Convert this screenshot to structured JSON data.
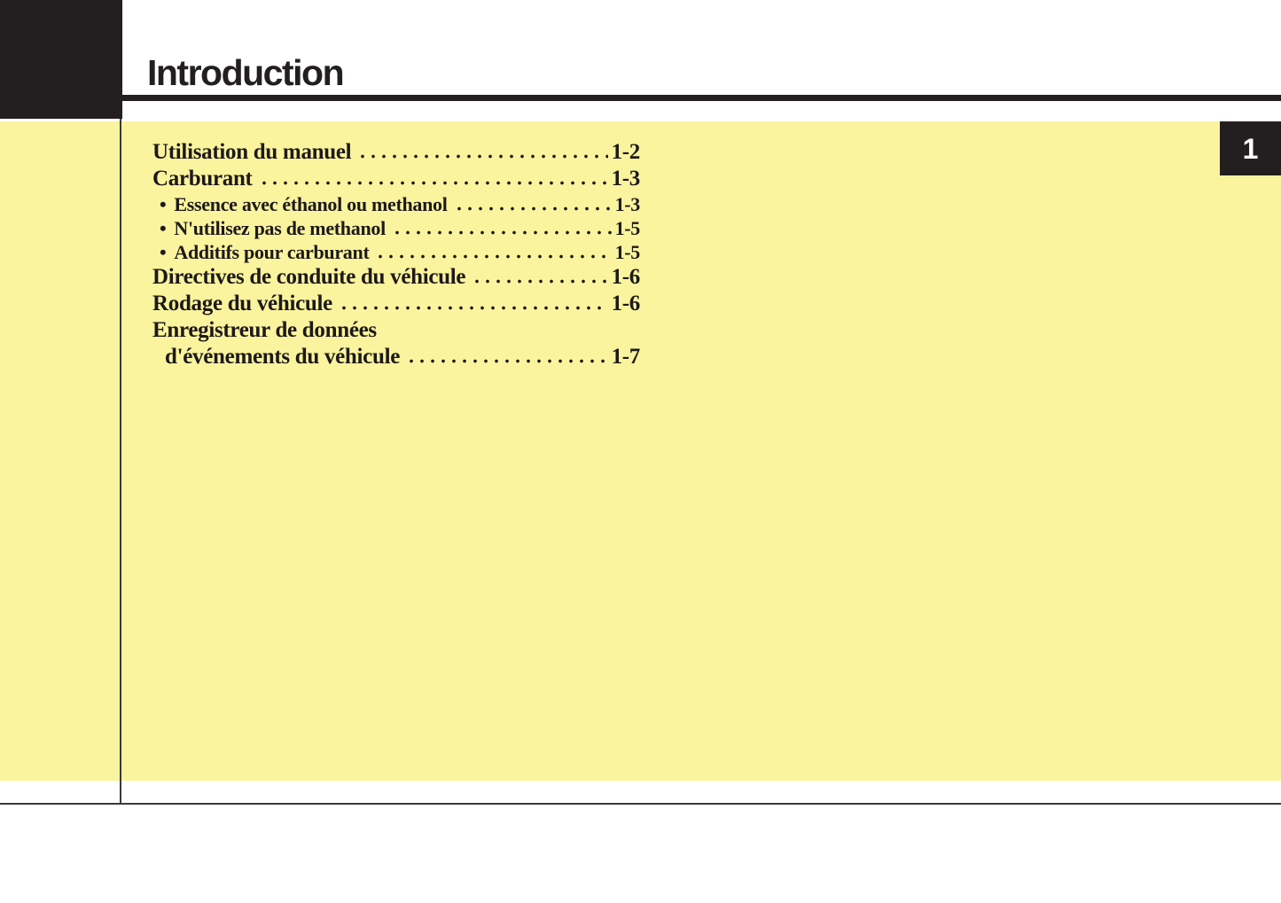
{
  "page": {
    "title": "Introduction"
  },
  "tab": {
    "number": "1"
  },
  "toc": {
    "bullet": "•",
    "entries": [
      {
        "label": "Utilisation du manuel",
        "page": "1-2",
        "level": 1
      },
      {
        "label": "Carburant",
        "page": "1-3",
        "level": 1
      },
      {
        "label": "Essence avec éthanol ou methanol",
        "page": "1-3",
        "level": 2
      },
      {
        "label": "N'utilisez pas de methanol",
        "page": "1-5",
        "level": 2
      },
      {
        "label": "Additifs pour carburant",
        "page": "1-5",
        "level": 2
      },
      {
        "label": "Directives de conduite du véhicule",
        "page": "1-6",
        "level": 1
      },
      {
        "label": "Rodage du véhicule",
        "page": "1-6",
        "level": 1
      },
      {
        "label": "Enregistreur de données",
        "page": null,
        "level": 1
      },
      {
        "label": "d'événements du véhicule",
        "page": "1-7",
        "level": 1,
        "continuation": true
      }
    ]
  },
  "colors": {
    "highlight": "#FBF49E",
    "ink": "#231F20",
    "text": "#1D191A",
    "tab_text": "#FFFFFF",
    "rule_gray": "#3A3A3A"
  }
}
